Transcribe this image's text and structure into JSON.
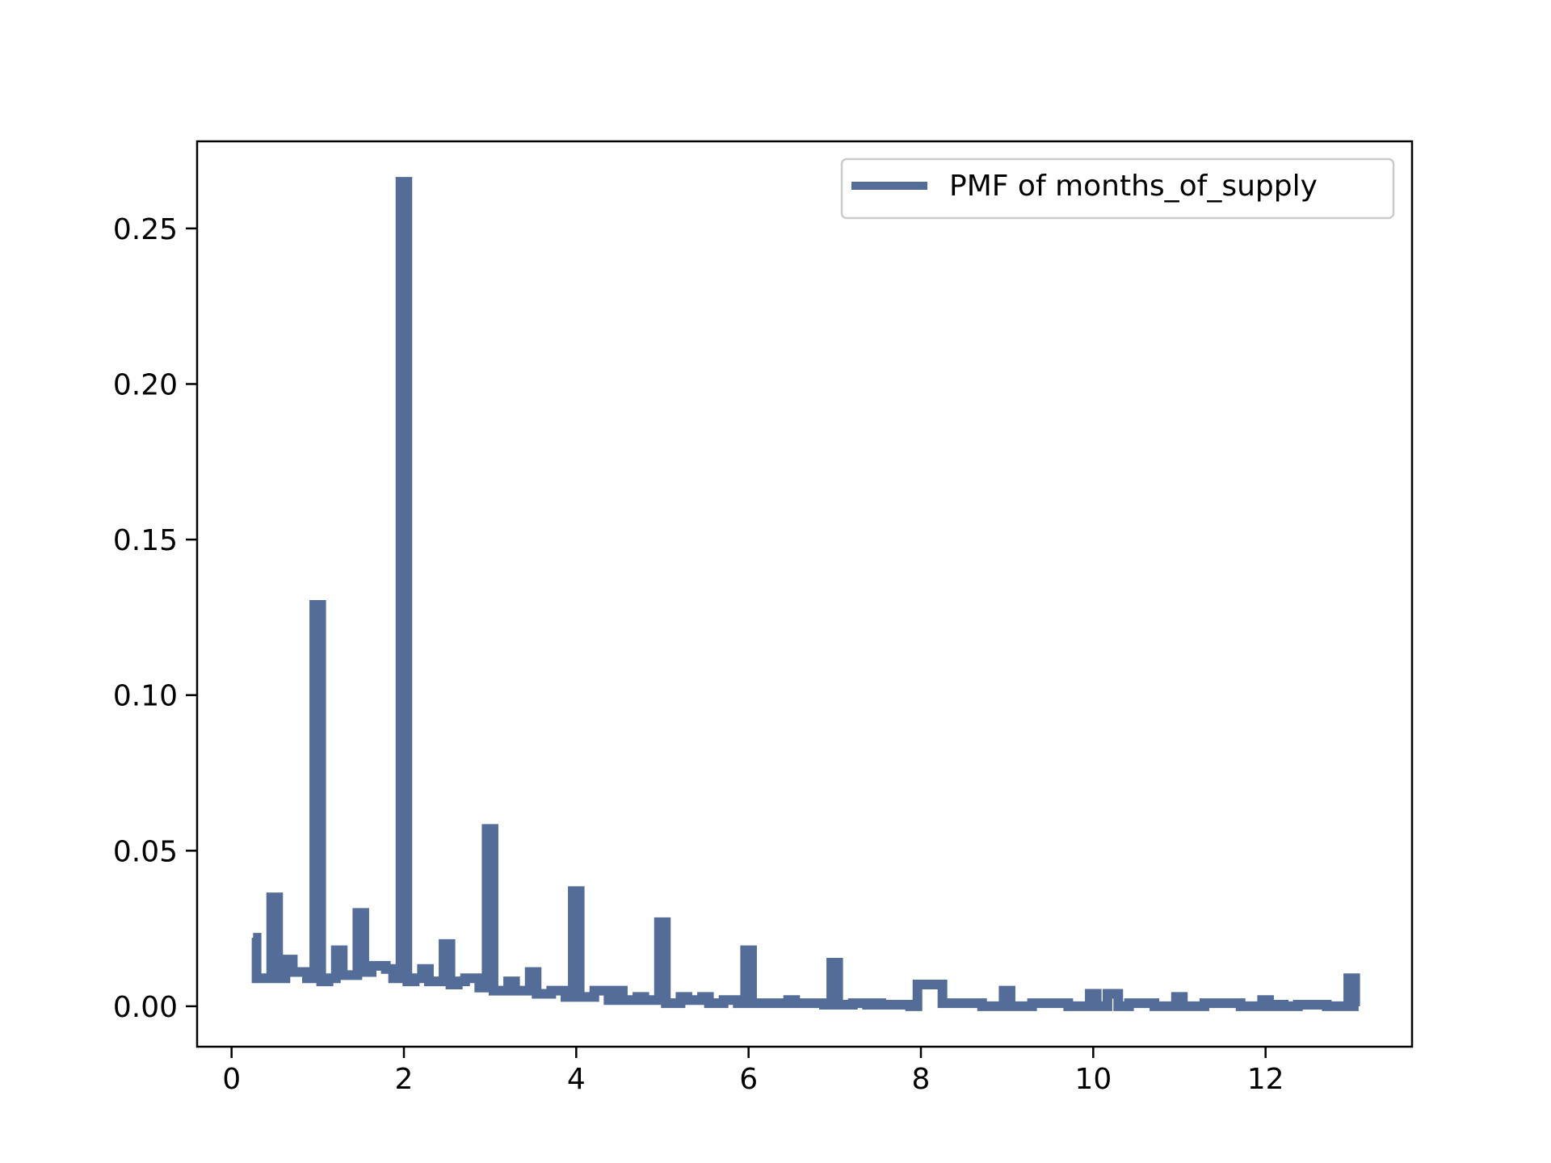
{
  "chart_data": {
    "type": "line",
    "drawstyle": "steps-mid",
    "title": "",
    "xlabel": "",
    "ylabel": "",
    "xlim": [
      -0.4,
      13.7
    ],
    "ylim": [
      -0.013,
      0.278
    ],
    "xticks": [
      0,
      2,
      4,
      6,
      8,
      10,
      12
    ],
    "xtick_labels": [
      "0",
      "2",
      "4",
      "6",
      "8",
      "10",
      "12"
    ],
    "yticks": [
      0.0,
      0.05,
      0.1,
      0.15,
      0.2,
      0.25
    ],
    "ytick_labels": [
      "0.00",
      "0.05",
      "0.10",
      "0.15",
      "0.20",
      "0.25"
    ],
    "grid": false,
    "legend": {
      "placement": "top-right",
      "entries": [
        "PMF of months_of_supply"
      ]
    },
    "series": [
      {
        "name": "PMF of months_of_supply",
        "color": "#536d98",
        "x": [
          0.25,
          0.33,
          0.42,
          0.5,
          0.58,
          0.67,
          0.75,
          0.83,
          0.92,
          1.0,
          1.08,
          1.17,
          1.25,
          1.33,
          1.42,
          1.5,
          1.58,
          1.67,
          1.75,
          1.83,
          1.92,
          2.0,
          2.08,
          2.17,
          2.25,
          2.33,
          2.42,
          2.5,
          2.58,
          2.67,
          2.75,
          2.83,
          2.92,
          3.0,
          3.08,
          3.17,
          3.25,
          3.33,
          3.42,
          3.5,
          3.58,
          3.67,
          3.75,
          3.83,
          3.92,
          4.0,
          4.08,
          4.17,
          4.25,
          4.33,
          4.42,
          4.5,
          4.58,
          4.67,
          4.75,
          4.83,
          4.92,
          5.0,
          5.08,
          5.17,
          5.25,
          5.33,
          5.42,
          5.5,
          5.58,
          5.67,
          5.75,
          5.83,
          5.92,
          6.0,
          6.08,
          6.17,
          6.25,
          6.33,
          6.42,
          6.5,
          6.58,
          6.67,
          6.75,
          6.83,
          6.92,
          7.0,
          7.08,
          7.17,
          7.25,
          7.33,
          7.42,
          7.5,
          7.58,
          7.67,
          7.75,
          7.83,
          7.92,
          8.0,
          8.5,
          8.92,
          9.0,
          9.08,
          9.5,
          9.92,
          10.0,
          10.08,
          10.25,
          10.33,
          10.5,
          10.92,
          11.0,
          11.08,
          11.5,
          11.92,
          12.0,
          12.08,
          12.17,
          12.25,
          12.5,
          12.92,
          13.0,
          13.08
        ],
        "values": [
          0.022,
          0.009,
          0.009,
          0.035,
          0.009,
          0.015,
          0.011,
          0.011,
          0.009,
          0.129,
          0.008,
          0.009,
          0.018,
          0.01,
          0.01,
          0.03,
          0.011,
          0.013,
          0.013,
          0.012,
          0.009,
          0.265,
          0.008,
          0.009,
          0.012,
          0.008,
          0.008,
          0.02,
          0.007,
          0.008,
          0.009,
          0.009,
          0.006,
          0.057,
          0.005,
          0.005,
          0.008,
          0.005,
          0.005,
          0.011,
          0.004,
          0.004,
          0.005,
          0.005,
          0.003,
          0.037,
          0.003,
          0.003,
          0.005,
          0.005,
          0.002,
          0.005,
          0.002,
          0.002,
          0.003,
          0.002,
          0.002,
          0.027,
          0.001,
          0.001,
          0.003,
          0.002,
          0.002,
          0.003,
          0.001,
          0.001,
          0.002,
          0.002,
          0.001,
          0.018,
          0.001,
          0.001,
          0.001,
          0.001,
          0.001,
          0.002,
          0.001,
          0.001,
          0.001,
          0.001,
          0.0005,
          0.014,
          0.0005,
          0.0005,
          0.001,
          0.001,
          0.0005,
          0.001,
          0.0005,
          0.0005,
          0.0005,
          0.0005,
          0.0,
          0.007,
          0.001,
          0.0,
          0.005,
          0.0,
          0.001,
          0.0,
          0.004,
          0.0,
          0.004,
          0.0,
          0.001,
          0.0,
          0.003,
          0.0,
          0.001,
          0.0,
          0.002,
          0.0,
          0.0005,
          0.0,
          0.0005,
          0.0,
          0.009,
          0.0
        ]
      }
    ]
  }
}
